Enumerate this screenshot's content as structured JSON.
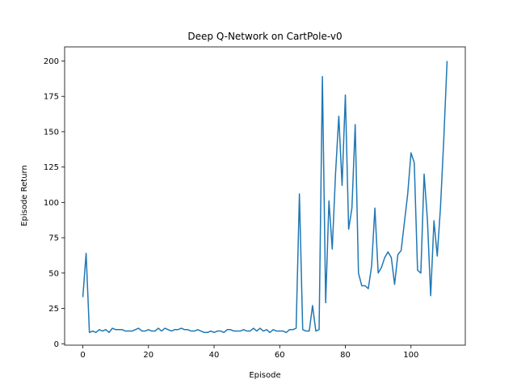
{
  "chart_data": {
    "type": "line",
    "title": "Deep Q-Network on CartPole-v0",
    "xlabel": "Episode",
    "ylabel": "Episode Return",
    "xlim": [
      -5.55,
      116.55
    ],
    "ylim": [
      -1.0,
      210.0
    ],
    "xticks": [
      0,
      20,
      40,
      60,
      80,
      100
    ],
    "yticks": [
      0,
      25,
      50,
      75,
      100,
      125,
      150,
      175,
      200
    ],
    "grid": false,
    "legend": "none",
    "colors": {
      "line": "#1f77b4",
      "axes": "#000000",
      "background": "#ffffff"
    },
    "series": [
      {
        "x": [
          0,
          1,
          2,
          3,
          4,
          5,
          6,
          7,
          8,
          9,
          10,
          11,
          12,
          13,
          14,
          15,
          16,
          17,
          18,
          19,
          20,
          21,
          22,
          23,
          24,
          25,
          26,
          27,
          28,
          29,
          30,
          31,
          32,
          33,
          34,
          35,
          36,
          37,
          38,
          39,
          40,
          41,
          42,
          43,
          44,
          45,
          46,
          47,
          48,
          49,
          50,
          51,
          52,
          53,
          54,
          55,
          56,
          57,
          58,
          59,
          60,
          61,
          62,
          63,
          64,
          65,
          66,
          67,
          68,
          69,
          70,
          71,
          72,
          73,
          74,
          75,
          76,
          77,
          78,
          79,
          80,
          81,
          82,
          83,
          84,
          85,
          86,
          87,
          88,
          89,
          90,
          91,
          92,
          93,
          94,
          95,
          96,
          97,
          98,
          99,
          100,
          101,
          102,
          103,
          104,
          105,
          106,
          107,
          108,
          109,
          110,
          111
        ],
        "values": [
          33,
          64,
          8,
          9,
          8,
          10,
          9,
          10,
          8,
          11,
          10,
          10,
          10,
          9,
          9,
          9,
          10,
          11,
          9,
          9,
          10,
          9,
          9,
          11,
          9,
          11,
          10,
          9,
          10,
          10,
          11,
          10,
          10,
          9,
          9,
          10,
          9,
          8,
          8,
          9,
          8,
          9,
          9,
          8,
          10,
          10,
          9,
          9,
          9,
          10,
          9,
          9,
          11,
          9,
          11,
          9,
          10,
          8,
          10,
          9,
          9,
          9,
          8,
          10,
          10,
          11,
          106,
          10,
          9,
          9,
          27,
          9,
          10,
          189,
          29,
          101,
          67,
          120,
          161,
          112,
          176,
          81,
          96,
          155,
          50,
          41,
          41,
          39,
          55,
          96,
          50,
          54,
          61,
          65,
          61,
          42,
          63,
          66,
          86,
          106,
          135,
          128,
          52,
          50,
          120,
          88,
          34,
          87,
          62,
          97,
          145,
          200
        ]
      }
    ]
  }
}
